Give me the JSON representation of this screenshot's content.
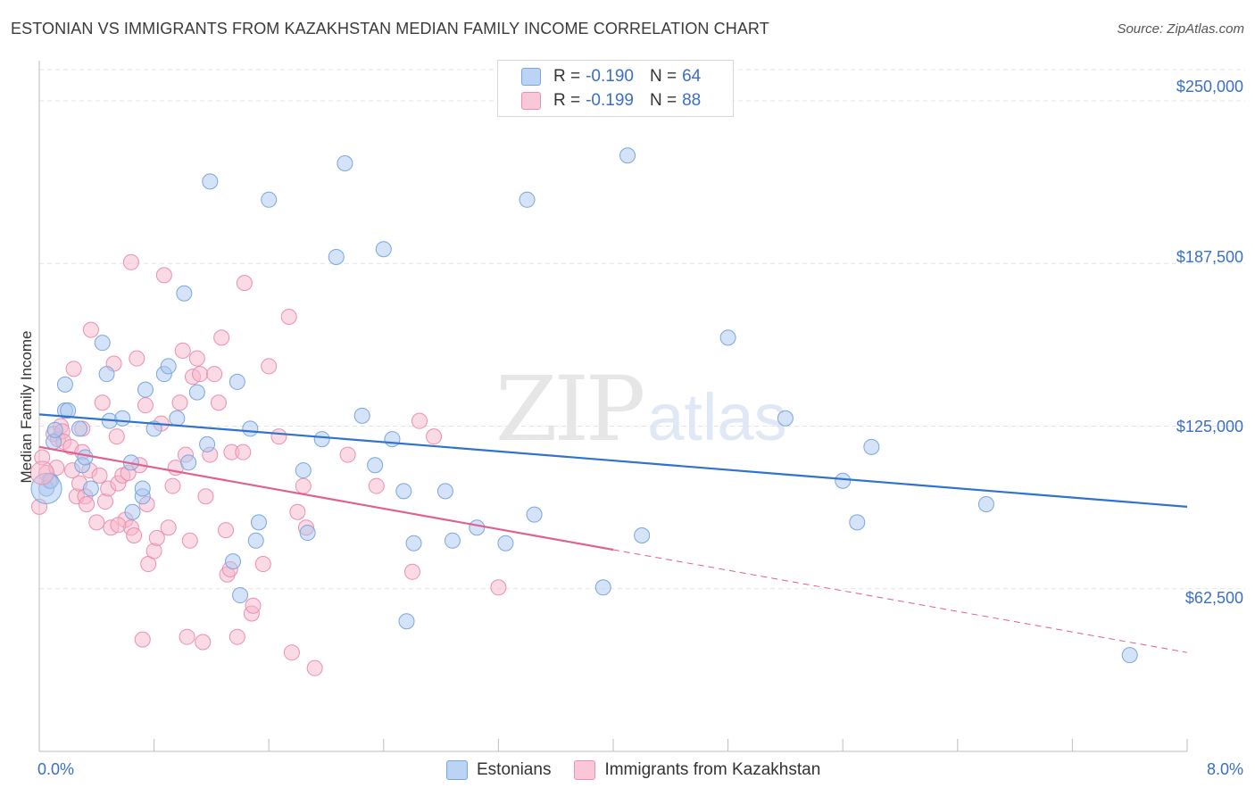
{
  "title": "ESTONIAN VS IMMIGRANTS FROM KAZAKHSTAN MEDIAN FAMILY INCOME CORRELATION CHART",
  "source": "Source: ZipAtlas.com",
  "watermark": {
    "zip": "ZIP",
    "atlas": "atlas"
  },
  "colors": {
    "estonians_fill": "#a9c8f0",
    "estonians_stroke": "#7aa6de",
    "estonians_line": "#2f72d0",
    "kazakh_fill": "#f6b6cb",
    "kazakh_stroke": "#ec8fae",
    "kazakh_line": "#e0608e",
    "tick_text": "#3a6fc4",
    "grid": "#e3e3e3"
  },
  "legend_top": [
    {
      "r_label": "R =",
      "r_value": "-0.190",
      "n_label": "N =",
      "n_value": "64"
    },
    {
      "r_label": "R =",
      "r_value": "-0.199",
      "n_label": "N =",
      "n_value": "88"
    }
  ],
  "x_axis": {
    "min_label": "0.0%",
    "max_label": "8.0%"
  },
  "chart_data": {
    "type": "scatter",
    "title": "ESTONIAN VS IMMIGRANTS FROM KAZAKHSTAN MEDIAN FAMILY INCOME CORRELATION CHART",
    "xlabel": "",
    "ylabel": "Median Family Income",
    "xlim": [
      0,
      8
    ],
    "ylim": [
      0,
      262000
    ],
    "y_ticks": [
      {
        "value": 62500,
        "label": "$62,500"
      },
      {
        "value": 125000,
        "label": "$125,000"
      },
      {
        "value": 187500,
        "label": "$187,500"
      },
      {
        "value": 250000,
        "label": "$250,000"
      }
    ],
    "legend_position": "top-center",
    "grid": true,
    "series": [
      {
        "name": "Estonians",
        "trend": {
          "x": [
            0.0,
            8.0
          ],
          "y": [
            129500,
            94000
          ]
        },
        "points": [
          [
            0.05,
            101000
          ],
          [
            0.1,
            119000
          ],
          [
            0.18,
            131000
          ],
          [
            0.11,
            123500
          ],
          [
            0.2,
            131000
          ],
          [
            0.18,
            141000
          ],
          [
            0.28,
            124000
          ],
          [
            0.3,
            110000
          ],
          [
            0.32,
            113000
          ],
          [
            0.36,
            101000
          ],
          [
            0.44,
            157000
          ],
          [
            0.47,
            145000
          ],
          [
            0.49,
            127000
          ],
          [
            0.58,
            128000
          ],
          [
            0.64,
            111000
          ],
          [
            0.65,
            92000
          ],
          [
            0.72,
            98000
          ],
          [
            0.72,
            101000
          ],
          [
            0.74,
            139000
          ],
          [
            0.8,
            124000
          ],
          [
            0.87,
            145000
          ],
          [
            0.9,
            148000
          ],
          [
            0.96,
            128000
          ],
          [
            1.01,
            176000
          ],
          [
            1.04,
            111000
          ],
          [
            1.1,
            138000
          ],
          [
            1.17,
            118000
          ],
          [
            1.19,
            219000
          ],
          [
            1.35,
            73000
          ],
          [
            1.38,
            142000
          ],
          [
            1.4,
            60000
          ],
          [
            1.47,
            124000
          ],
          [
            1.51,
            81000
          ],
          [
            1.53,
            88000
          ],
          [
            1.6,
            212000
          ],
          [
            1.84,
            108000
          ],
          [
            1.87,
            84000
          ],
          [
            1.97,
            120000
          ],
          [
            2.07,
            190000
          ],
          [
            2.13,
            226000
          ],
          [
            2.25,
            129000
          ],
          [
            2.34,
            110000
          ],
          [
            2.4,
            193000
          ],
          [
            2.46,
            120000
          ],
          [
            2.54,
            100000
          ],
          [
            2.56,
            50000
          ],
          [
            2.61,
            80000
          ],
          [
            2.83,
            100000
          ],
          [
            2.88,
            81000
          ],
          [
            3.05,
            86000
          ],
          [
            3.25,
            80000
          ],
          [
            3.4,
            212000
          ],
          [
            3.45,
            91000
          ],
          [
            3.93,
            63000
          ],
          [
            4.1,
            229000
          ],
          [
            4.2,
            83000
          ],
          [
            4.8,
            159000
          ],
          [
            5.2,
            128000
          ],
          [
            5.6,
            104000
          ],
          [
            5.7,
            88000
          ],
          [
            5.8,
            117000
          ],
          [
            6.6,
            95000
          ],
          [
            7.6,
            37000
          ],
          [
            0.08,
            104000
          ]
        ]
      },
      {
        "name": "Immigrants from Kazakhstan",
        "trend": {
          "x": [
            0.0,
            4.0
          ],
          "y": [
            117000,
            77500
          ]
        },
        "trend_dashed": {
          "x": [
            4.0,
            8.0
          ],
          "y": [
            77500,
            38000
          ]
        },
        "points": [
          [
            0.0,
            94000
          ],
          [
            0.02,
            113000
          ],
          [
            0.05,
            107000
          ],
          [
            0.07,
            104000
          ],
          [
            0.1,
            122000
          ],
          [
            0.13,
            120000
          ],
          [
            0.15,
            125000
          ],
          [
            0.16,
            123000
          ],
          [
            0.17,
            119000
          ],
          [
            0.22,
            117000
          ],
          [
            0.23,
            108000
          ],
          [
            0.24,
            147000
          ],
          [
            0.26,
            98000
          ],
          [
            0.28,
            103000
          ],
          [
            0.3,
            115000
          ],
          [
            0.32,
            98000
          ],
          [
            0.33,
            95000
          ],
          [
            0.35,
            108000
          ],
          [
            0.36,
            162000
          ],
          [
            0.4,
            88000
          ],
          [
            0.42,
            106000
          ],
          [
            0.44,
            134000
          ],
          [
            0.46,
            96000
          ],
          [
            0.48,
            101000
          ],
          [
            0.5,
            86000
          ],
          [
            0.52,
            149000
          ],
          [
            0.54,
            121000
          ],
          [
            0.55,
            103000
          ],
          [
            0.58,
            106000
          ],
          [
            0.6,
            89000
          ],
          [
            0.62,
            107000
          ],
          [
            0.64,
            188000
          ],
          [
            0.64,
            86000
          ],
          [
            0.66,
            83000
          ],
          [
            0.68,
            151000
          ],
          [
            0.7,
            110000
          ],
          [
            0.72,
            43000
          ],
          [
            0.74,
            133000
          ],
          [
            0.75,
            95000
          ],
          [
            0.76,
            72000
          ],
          [
            0.8,
            77000
          ],
          [
            0.82,
            82000
          ],
          [
            0.85,
            126000
          ],
          [
            0.87,
            183000
          ],
          [
            0.9,
            86000
          ],
          [
            0.93,
            102000
          ],
          [
            0.95,
            109000
          ],
          [
            0.98,
            134000
          ],
          [
            1.0,
            154000
          ],
          [
            1.02,
            114000
          ],
          [
            1.03,
            44000
          ],
          [
            1.05,
            81000
          ],
          [
            1.07,
            144000
          ],
          [
            1.1,
            151000
          ],
          [
            1.12,
            145000
          ],
          [
            1.14,
            42000
          ],
          [
            1.16,
            98000
          ],
          [
            1.19,
            114000
          ],
          [
            1.22,
            145000
          ],
          [
            1.25,
            134000
          ],
          [
            1.27,
            159000
          ],
          [
            1.3,
            85000
          ],
          [
            1.31,
            68000
          ],
          [
            1.33,
            70000
          ],
          [
            1.34,
            115000
          ],
          [
            1.38,
            44000
          ],
          [
            1.42,
            115000
          ],
          [
            1.43,
            180000
          ],
          [
            1.48,
            53000
          ],
          [
            1.49,
            56000
          ],
          [
            1.56,
            72000
          ],
          [
            1.6,
            148000
          ],
          [
            1.67,
            121000
          ],
          [
            1.74,
            167000
          ],
          [
            1.76,
            38000
          ],
          [
            1.8,
            92000
          ],
          [
            1.84,
            102000
          ],
          [
            1.86,
            86000
          ],
          [
            1.92,
            32000
          ],
          [
            2.15,
            114000
          ],
          [
            2.35,
            102000
          ],
          [
            2.6,
            69000
          ],
          [
            2.65,
            127000
          ],
          [
            2.75,
            121000
          ],
          [
            3.2,
            63000
          ],
          [
            0.3,
            124000
          ],
          [
            0.12,
            109000
          ],
          [
            0.55,
            87000
          ]
        ]
      }
    ]
  }
}
